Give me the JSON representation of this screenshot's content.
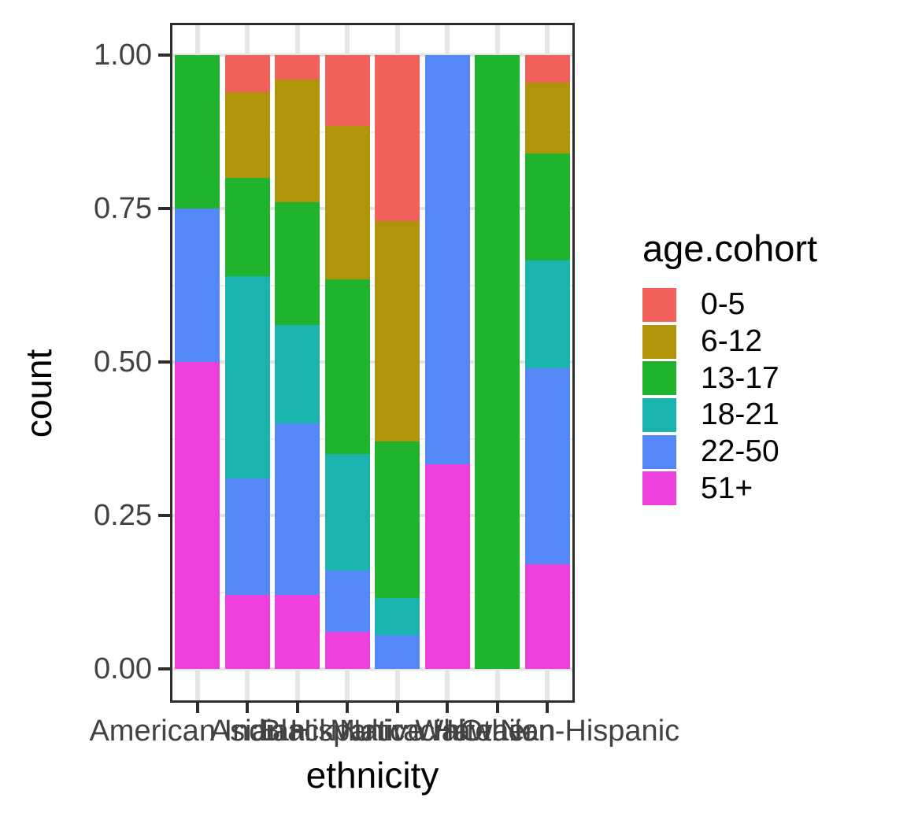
{
  "axes": {
    "y_label": "count",
    "x_label": "ethnicity",
    "y_ticks": [
      {
        "label": "1.00",
        "value": 1.0
      },
      {
        "label": "0.75",
        "value": 0.75
      },
      {
        "label": "0.50",
        "value": 0.5
      },
      {
        "label": "0.25",
        "value": 0.25
      },
      {
        "label": "0.00",
        "value": 0.0
      }
    ]
  },
  "legend": {
    "title": "age.cohort",
    "entries": [
      {
        "label": "0-5",
        "color": "#f2605c"
      },
      {
        "label": "6-12",
        "color": "#b0940a"
      },
      {
        "label": "13-17",
        "color": "#1fb32e"
      },
      {
        "label": "18-21",
        "color": "#1ab3ae"
      },
      {
        "label": "22-50",
        "color": "#5588f7"
      },
      {
        "label": "51+",
        "color": "#ec3fdc"
      }
    ]
  },
  "chart_data": {
    "type": "bar",
    "stacked": true,
    "normalized": true,
    "title": "",
    "xlabel": "ethnicity",
    "ylabel": "count",
    "ylim": [
      0,
      1
    ],
    "grid": {
      "y_major": [
        0,
        0.25,
        0.5,
        0.75,
        1.0
      ],
      "y_minor": [
        0.125,
        0.375,
        0.625,
        0.875
      ],
      "x_major_at_category_centers": true
    },
    "legend_position": "right",
    "categories": [
      "American Indian",
      "Asian",
      "Black",
      "Hispanic",
      "Multiracial",
      "Native Hawaiian",
      "Other",
      "White Non-Hispanic"
    ],
    "series": [
      {
        "name": "0-5",
        "color": "#f2605c",
        "values": [
          0,
          0.06,
          0.04,
          0.115,
          0.27,
          0,
          0,
          0.045
        ]
      },
      {
        "name": "6-12",
        "color": "#b0940a",
        "values": [
          0,
          0.14,
          0.2,
          0.25,
          0.36,
          0,
          0,
          0.115
        ]
      },
      {
        "name": "13-17",
        "color": "#1fb32e",
        "values": [
          0.25,
          0.16,
          0.2,
          0.285,
          0.255,
          0,
          1.0,
          0.175
        ]
      },
      {
        "name": "18-21",
        "color": "#1ab3ae",
        "values": [
          0,
          0.33,
          0.16,
          0.19,
          0.06,
          0,
          0,
          0.175
        ]
      },
      {
        "name": "22-50",
        "color": "#5588f7",
        "values": [
          0.25,
          0.19,
          0.28,
          0.1,
          0.055,
          0.667,
          0,
          0.32
        ]
      },
      {
        "name": "51+",
        "color": "#ec3fdc",
        "values": [
          0.5,
          0.12,
          0.12,
          0.06,
          0,
          0.333,
          0,
          0.17
        ]
      }
    ]
  }
}
